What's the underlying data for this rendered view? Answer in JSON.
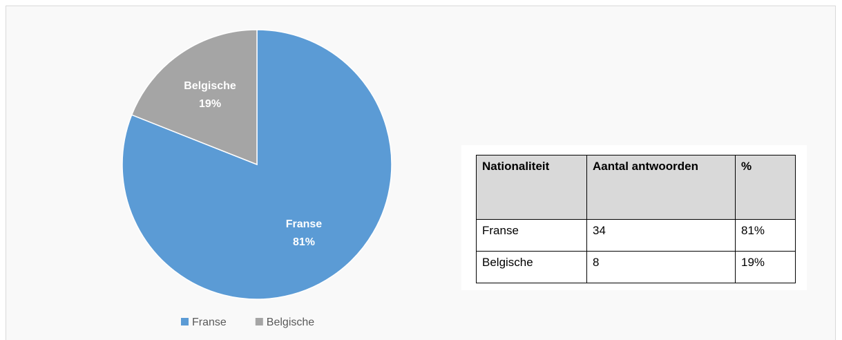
{
  "chart_data": {
    "type": "pie",
    "categories": [
      "Franse",
      "Belgische"
    ],
    "values": [
      81,
      19
    ],
    "value_labels": [
      "81%",
      "19%"
    ],
    "colors": [
      "#5b9bd5",
      "#a5a5a5"
    ],
    "legend": "bottom"
  },
  "table": {
    "header": [
      "Nationaliteit",
      "Aantal antwoorden",
      "%"
    ],
    "rows": [
      [
        "Franse",
        "34",
        "81%"
      ],
      [
        "Belgische",
        "8",
        "19%"
      ]
    ]
  }
}
